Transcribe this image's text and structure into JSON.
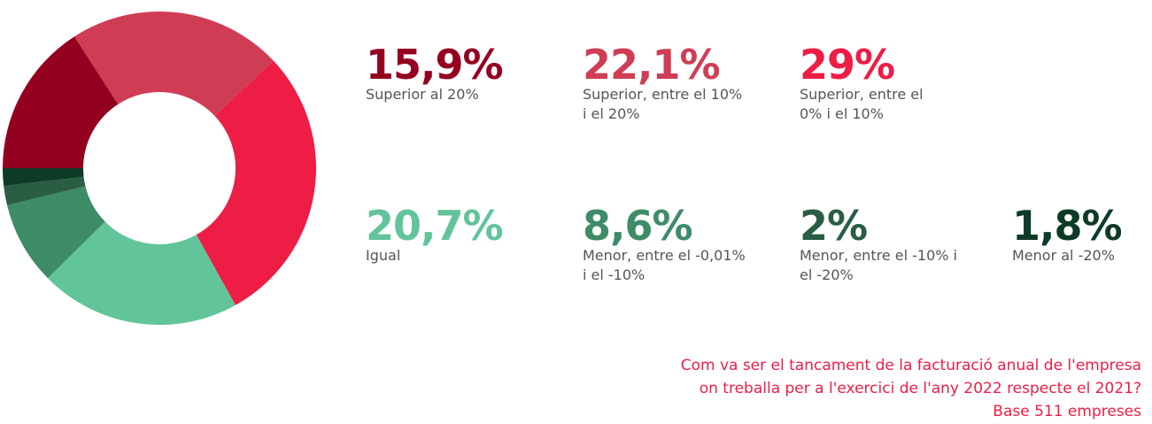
{
  "chart_data": {
    "type": "donut",
    "categories": [
      "Superior al 20%",
      "Superior, entre el 10% i el 20%",
      "Superior, entre el 0% i el 10%",
      "Igual",
      "Menor, entre el -0,01% i el -10%",
      "Menor, entre el -10% i el -20%",
      "Menor al -20%"
    ],
    "values": [
      15.9,
      22.1,
      29,
      20.7,
      8.6,
      2,
      1.8
    ],
    "value_labels": [
      "15,9%",
      "22,1%",
      "29%",
      "20,7%",
      "8,6%",
      "2%",
      "1,8%"
    ],
    "colors": [
      "#940020",
      "#cf3d55",
      "#ee1d45",
      "#62c49a",
      "#3e8c67",
      "#2a5e44",
      "#0d3b26"
    ],
    "note": [
      "Com va ser el tancament de la facturació anual de l'empresa",
      "on treballa per a l'exercici de l'any 2022 respecte el 2021?",
      "Base 511 empreses"
    ]
  }
}
